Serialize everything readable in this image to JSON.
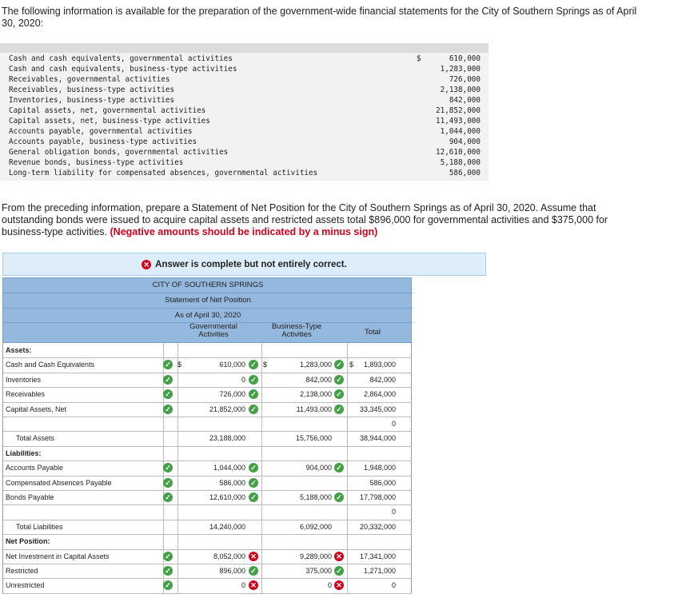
{
  "intro": "The following information is available for the preparation of the government-wide financial statements for the City of Southern Springs as of April 30, 2020:",
  "data_rows": [
    {
      "label": "Cash and cash equivalents, governmental activities",
      "dollar": "$",
      "amount": "610,000"
    },
    {
      "label": "Cash and cash equivalents, business-type activities",
      "dollar": "",
      "amount": "1,283,000"
    },
    {
      "label": "Receivables, governmental activities",
      "dollar": "",
      "amount": "726,000"
    },
    {
      "label": "Receivables, business-type activities",
      "dollar": "",
      "amount": "2,138,000"
    },
    {
      "label": "Inventories, business-type activities",
      "dollar": "",
      "amount": "842,000"
    },
    {
      "label": "Capital assets, net, governmental activities",
      "dollar": "",
      "amount": "21,852,000"
    },
    {
      "label": "Capital assets, net, business-type activities",
      "dollar": "",
      "amount": "11,493,000"
    },
    {
      "label": "Accounts payable, governmental activities",
      "dollar": "",
      "amount": "1,044,000"
    },
    {
      "label": "Accounts payable, business-type activities",
      "dollar": "",
      "amount": "904,000"
    },
    {
      "label": "General obligation bonds, governmental activities",
      "dollar": "",
      "amount": "12,610,000"
    },
    {
      "label": "Revenue bonds, business-type activities",
      "dollar": "",
      "amount": "5,188,000"
    },
    {
      "label": "Long-term liability for compensated absences, governmental activities",
      "dollar": "",
      "amount": "586,000"
    }
  ],
  "question": "From the preceding information, prepare a Statement of Net Position for the City of Southern Springs as of April 30, 2020. Assume that outstanding bonds were issued to acquire capital assets and restricted assets total $896,000 for governmental activities and $375,000 for business-type activities.",
  "question_note": "(Negative amounts should be indicated by a minus sign)",
  "banner": "Answer is complete but not entirely correct.",
  "statement": {
    "entity": "CITY OF SOUTHERN SPRINGS",
    "title": "Statement of Net Position",
    "date": "As of April 30, 2020",
    "col_gov": "Governmental Activities",
    "col_bus": "Business-Type Activities",
    "col_total": "Total"
  },
  "rows": [
    {
      "label": "Assets:",
      "style": "bold"
    },
    {
      "label": "Cash and Cash Equivalents",
      "lm": "check",
      "gd": "$",
      "gov": "610,000",
      "gm": "check",
      "bd": "$",
      "bus": "1,283,000",
      "bm": "check",
      "td": "$",
      "total": "1,893,000"
    },
    {
      "label": "Inventories",
      "lm": "check",
      "gov": "0",
      "gm": "check",
      "bus": "842,000",
      "bm": "check",
      "total": "842,000"
    },
    {
      "label": "Receivables",
      "lm": "check",
      "gov": "726,000",
      "gm": "check",
      "bus": "2,138,000",
      "bm": "check",
      "total": "2,864,000"
    },
    {
      "label": "Capital Assets, Net",
      "lm": "check",
      "gov": "21,852,000",
      "gm": "check",
      "bus": "11,493,000",
      "bm": "check",
      "total": "33,345,000"
    },
    {
      "label": "",
      "total": "0"
    },
    {
      "label": "Total Assets",
      "style": "indent",
      "gov": "23,188,000",
      "bus": "15,756,000",
      "total": "38,944,000"
    },
    {
      "label": "Liabilities:",
      "style": "bold"
    },
    {
      "label": "Accounts Payable",
      "lm": "check",
      "gov": "1,044,000",
      "gm": "check",
      "bus": "904,000",
      "bm": "check",
      "total": "1,948,000"
    },
    {
      "label": "Compensated Absences Payable",
      "lm": "check",
      "gov": "586,000",
      "gm": "check",
      "total": "586,000"
    },
    {
      "label": "Bonds Payable",
      "lm": "check",
      "gov": "12,610,000",
      "gm": "check",
      "bus": "5,188,000",
      "bm": "check",
      "total": "17,798,000"
    },
    {
      "label": "",
      "total": "0"
    },
    {
      "label": "Total Liabilities",
      "style": "indent",
      "gov": "14,240,000",
      "bus": "6,092,000",
      "total": "20,332,000"
    },
    {
      "label": "Net Position:",
      "style": "bold"
    },
    {
      "label": "Net Investment in Capital Assets",
      "lm": "check",
      "gov": "8,052,000",
      "gm": "x",
      "bus": "9,289,000",
      "bm": "x",
      "total": "17,341,000"
    },
    {
      "label": "Restricted",
      "lm": "check",
      "gov": "896,000",
      "gm": "check",
      "bus": "375,000",
      "bm": "check",
      "total": "1,271,000"
    },
    {
      "label": "Unrestricted",
      "lm": "check",
      "gov": "0",
      "gm": "x",
      "bus": "0",
      "bm": "x",
      "total": "0"
    }
  ]
}
